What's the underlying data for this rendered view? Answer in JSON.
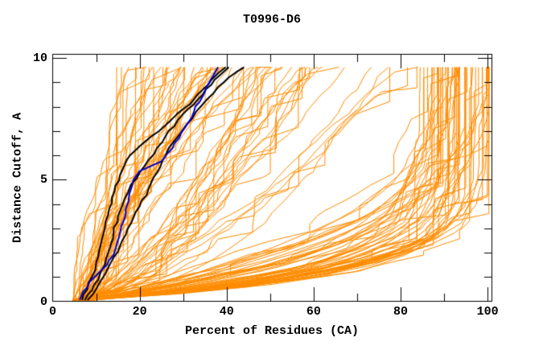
{
  "window": {
    "title": "T0996-D6"
  },
  "chart_data": {
    "type": "line",
    "title": "T0996-D6",
    "xlabel": "Percent of Residues (CA)",
    "ylabel": "Distance Cutoff, A",
    "xlim": [
      0,
      101
    ],
    "ylim": [
      0,
      10.15
    ],
    "x_major_ticks": [
      20,
      40,
      60,
      80,
      100
    ],
    "x_minor_ticks": [
      10,
      30,
      50,
      70,
      90
    ],
    "y_major_ticks": [
      5,
      10
    ],
    "y_minor_ticks": [
      1,
      2,
      3,
      4,
      6,
      7,
      8,
      9
    ],
    "x_tick_labels": [
      {
        "value": 0,
        "label": "0"
      },
      {
        "value": 20,
        "label": "20"
      },
      {
        "value": 40,
        "label": "40"
      },
      {
        "value": 60,
        "label": "60"
      },
      {
        "value": 80,
        "label": "80"
      },
      {
        "value": 100,
        "label": "100"
      }
    ],
    "y_tick_labels": [
      {
        "value": 0,
        "label": "0"
      },
      {
        "value": 5,
        "label": "5"
      },
      {
        "value": 10,
        "label": "10"
      }
    ],
    "grid": false,
    "legend": "none",
    "colors": {
      "ensemble": "#ff8c00",
      "highlight_black": "#000000",
      "highlight_blue": "#0000cd",
      "axis": "#000000",
      "background": "#ffffff"
    },
    "series": [
      {
        "name": "highlighted-model-black-1",
        "color_key": "highlight_black",
        "width": 2,
        "points": [
          [
            6.8,
            0.05
          ],
          [
            8,
            0.5
          ],
          [
            9,
            1.0
          ],
          [
            10,
            1.6
          ],
          [
            11,
            2.3
          ],
          [
            12,
            3.0
          ],
          [
            13,
            3.8
          ],
          [
            14.2,
            4.5
          ],
          [
            15.5,
            5.2
          ],
          [
            17,
            5.8
          ],
          [
            19,
            6.2
          ],
          [
            21.5,
            6.6
          ],
          [
            24.5,
            7.0
          ],
          [
            27.5,
            7.5
          ],
          [
            30,
            7.9
          ],
          [
            32.5,
            8.3
          ],
          [
            34.5,
            8.7
          ],
          [
            36.5,
            9.1
          ],
          [
            38.2,
            9.4
          ],
          [
            39.8,
            9.62
          ]
        ]
      },
      {
        "name": "highlighted-model-black-2",
        "color_key": "highlight_black",
        "width": 2,
        "points": [
          [
            7.4,
            0.05
          ],
          [
            9,
            0.45
          ],
          [
            10.5,
            0.9
          ],
          [
            12,
            1.5
          ],
          [
            13,
            2.1
          ],
          [
            14,
            2.8
          ],
          [
            15,
            3.5
          ],
          [
            16.5,
            4.2
          ],
          [
            18,
            4.8
          ],
          [
            20,
            5.3
          ],
          [
            22,
            5.8
          ],
          [
            24,
            6.3
          ],
          [
            26,
            6.8
          ],
          [
            28,
            7.2
          ],
          [
            30,
            7.7
          ],
          [
            32.5,
            8.1
          ],
          [
            34.5,
            8.5
          ],
          [
            36.5,
            8.9
          ],
          [
            38.5,
            9.3
          ],
          [
            40.5,
            9.62
          ]
        ]
      },
      {
        "name": "highlighted-model-black-3",
        "color_key": "highlight_black",
        "width": 2,
        "points": [
          [
            8,
            0.05
          ],
          [
            10,
            0.5
          ],
          [
            12,
            1.1
          ],
          [
            14,
            1.8
          ],
          [
            16,
            2.5
          ],
          [
            18,
            3.2
          ],
          [
            20,
            3.9
          ],
          [
            22,
            4.6
          ],
          [
            24,
            5.3
          ],
          [
            26,
            6.0
          ],
          [
            28,
            6.6
          ],
          [
            30.5,
            7.2
          ],
          [
            33,
            7.8
          ],
          [
            35.5,
            8.3
          ],
          [
            38,
            8.8
          ],
          [
            40.5,
            9.2
          ],
          [
            42.5,
            9.45
          ],
          [
            44,
            9.62
          ]
        ]
      },
      {
        "name": "highlighted-model-blue",
        "color_key": "highlight_blue",
        "width": 2,
        "points": [
          [
            6.2,
            0.05
          ],
          [
            7,
            0.4
          ],
          [
            8.5,
            0.8
          ],
          [
            10.5,
            1.15
          ],
          [
            12.5,
            1.5
          ],
          [
            14,
            1.9
          ],
          [
            15,
            2.5
          ],
          [
            15.8,
            3.1
          ],
          [
            16.8,
            3.8
          ],
          [
            17.6,
            4.4
          ],
          [
            18.6,
            5.0
          ],
          [
            20,
            5.35
          ],
          [
            22.5,
            5.55
          ],
          [
            25,
            5.75
          ],
          [
            26.5,
            6.1
          ],
          [
            28,
            6.5
          ],
          [
            29.5,
            6.9
          ],
          [
            31,
            7.3
          ],
          [
            32.5,
            7.8
          ],
          [
            33.8,
            8.2
          ],
          [
            35,
            8.6
          ],
          [
            36,
            9.0
          ],
          [
            37,
            9.3
          ],
          [
            38,
            9.62
          ]
        ]
      }
    ],
    "ensemble": {
      "name": "all-predicted-models",
      "color_key": "ensemble",
      "width": 1,
      "count": 126,
      "seed": 1337,
      "y_start": 0.05,
      "y_top": 9.62,
      "x_start_range": [
        4.5,
        9.5
      ],
      "x_max": 100.3,
      "buckets": [
        {
          "weight": 0.36,
          "top_range": [
            15,
            47
          ],
          "form": "power",
          "exp_range": [
            0.85,
            1.45
          ]
        },
        {
          "weight": 0.26,
          "top_range": [
            47,
            82
          ],
          "form": "power",
          "exp_range": [
            0.45,
            0.8
          ]
        },
        {
          "weight": 0.38,
          "top_range": [
            82,
            101
          ],
          "form": "hook",
          "exp_range": [
            2.5,
            9.0
          ]
        }
      ]
    }
  }
}
